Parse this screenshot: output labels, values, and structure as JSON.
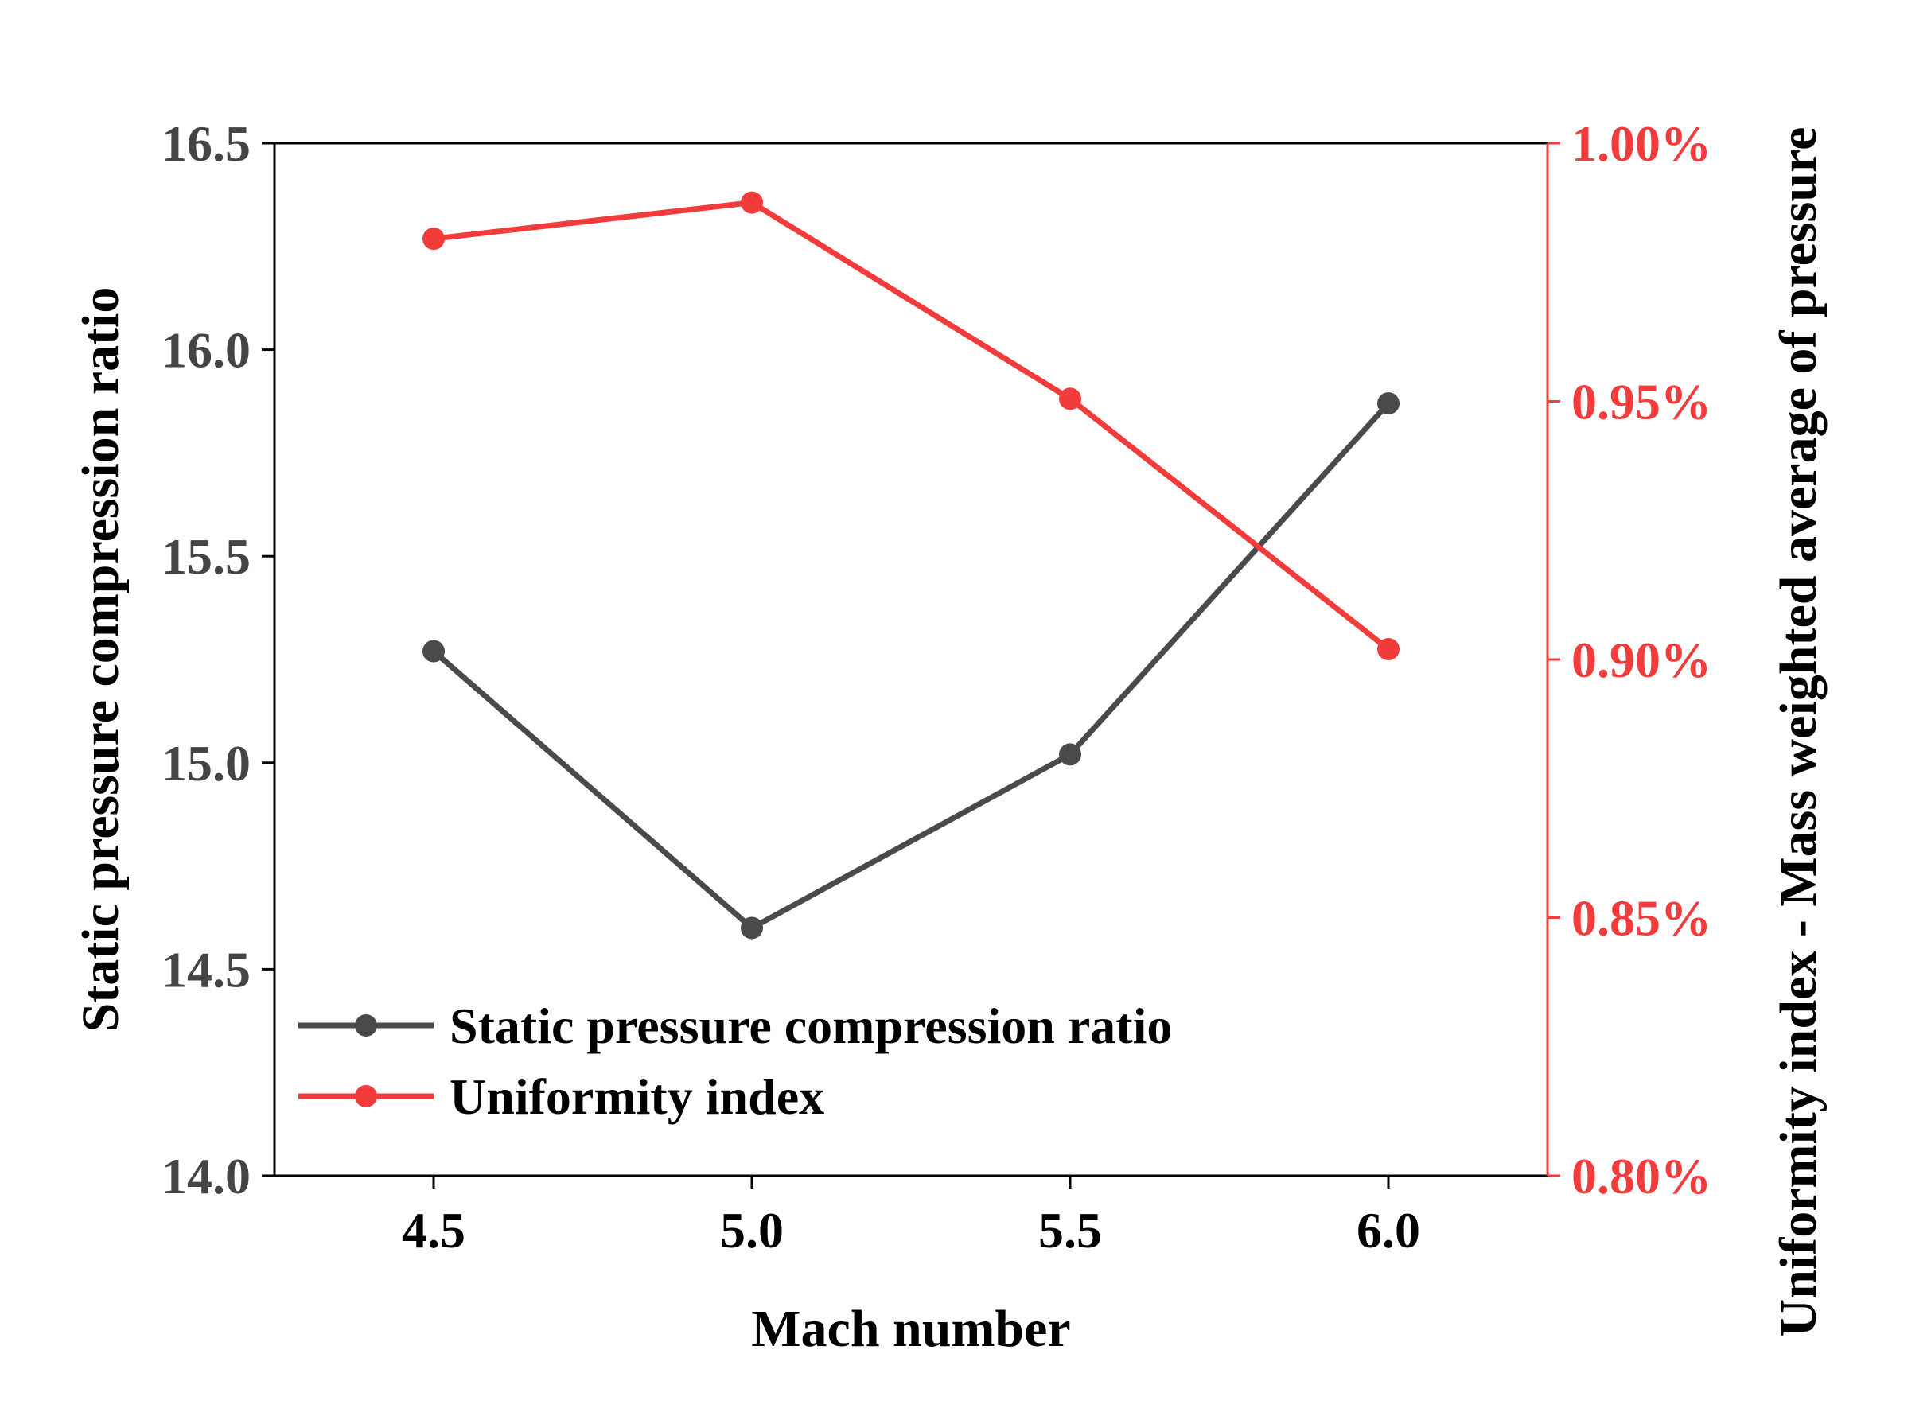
{
  "chart_data": {
    "type": "line",
    "x": [
      4.5,
      5.0,
      5.5,
      6.0
    ],
    "xticks": [
      "4.5",
      "5.0",
      "5.5",
      "6.0"
    ],
    "xlim": [
      4.25,
      6.25
    ],
    "xlabel": "Mach number",
    "ylabel_left": "Static pressure compression ratio",
    "ylabel_right": "Uniformity index - Mass weighted average of pressure",
    "ylim_left": [
      14.0,
      16.5
    ],
    "ylim_right": [
      0.8,
      1.0
    ],
    "yticks_left": [
      "14.0",
      "14.5",
      "15.0",
      "15.5",
      "16.0",
      "16.5"
    ],
    "yticks_right": [
      "0.80%",
      "0.85%",
      "0.90%",
      "0.95%",
      "1.00%"
    ],
    "grid": false,
    "legend_position": "bottom-left",
    "series": [
      {
        "name": "Static pressure compression ratio",
        "axis": "left",
        "color": "#4a4a4a",
        "values": [
          15.27,
          14.6,
          15.02,
          15.87
        ]
      },
      {
        "name": "Uniformity index",
        "axis": "right",
        "color": "#f23b3b",
        "values": [
          0.9815,
          0.9885,
          0.9505,
          0.902
        ]
      }
    ],
    "colors": {
      "axis_left": "#000000",
      "axis_right": "#f23b3b",
      "tick_label_left": "#444444",
      "tick_label_right": "#f23b3b"
    }
  }
}
